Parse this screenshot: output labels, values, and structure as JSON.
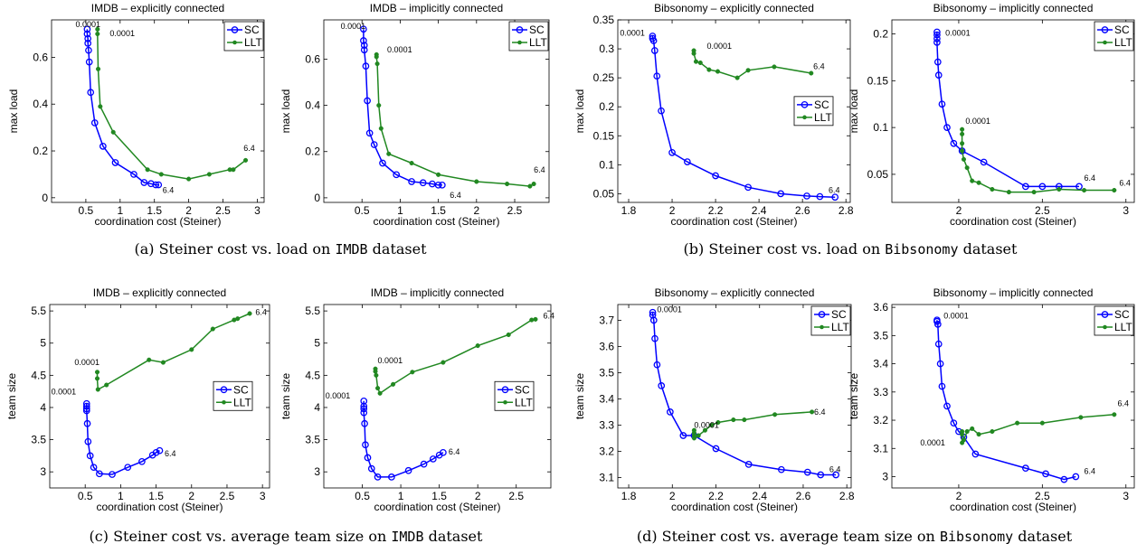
{
  "colors": {
    "SC": "#0000ff",
    "LLT": "#218821"
  },
  "captions": [
    {
      "prefix": "(a) Steiner cost vs. load on ",
      "dataset": "IMDB",
      "suffix": " dataset"
    },
    {
      "prefix": "(b) Steiner cost vs. load on ",
      "dataset": "Bibsonomy",
      "suffix": " dataset"
    },
    {
      "prefix": "(c) Steiner cost vs. average team size on ",
      "dataset": "IMDB",
      "suffix": " dataset"
    },
    {
      "prefix": "(d) Steiner cost vs. average team size on ",
      "dataset": "Bibsonomy",
      "suffix": " dataset"
    }
  ],
  "chart_data": [
    {
      "type": "line",
      "title": "IMDB – explicitly connected",
      "xlabel": "coordination cost (Steiner)",
      "ylabel": "max load",
      "xlim": [
        0,
        3.1
      ],
      "ylim": [
        -0.02,
        0.76
      ],
      "xticks": [
        0.5,
        1,
        1.5,
        2,
        2.5,
        3
      ],
      "xtick_labels": [
        "0.5",
        "1",
        "1.5",
        "2",
        "2.5",
        "3"
      ],
      "yticks": [
        0,
        0.2,
        0.4,
        0.6
      ],
      "ytick_labels": [
        "0",
        "0.2",
        "0.4",
        "0.6"
      ],
      "legend": "top-right",
      "series": [
        {
          "name": "SC",
          "marker": "circle",
          "x": [
            0.52,
            0.52,
            0.53,
            0.53,
            0.54,
            0.55,
            0.57,
            0.63,
            0.75,
            0.93,
            1.2,
            1.35,
            1.45,
            1.52,
            1.56
          ],
          "y": [
            0.72,
            0.7,
            0.68,
            0.66,
            0.63,
            0.58,
            0.45,
            0.32,
            0.22,
            0.15,
            0.1,
            0.065,
            0.06,
            0.055,
            0.055
          ]
        },
        {
          "name": "LLT",
          "marker": "dot",
          "x": [
            0.67,
            0.67,
            0.68,
            0.71,
            0.9,
            1.4,
            1.6,
            2.0,
            2.3,
            2.6,
            2.65,
            2.83
          ],
          "y": [
            0.72,
            0.7,
            0.55,
            0.39,
            0.28,
            0.12,
            0.1,
            0.08,
            0.1,
            0.12,
            0.12,
            0.16
          ]
        }
      ],
      "annotations": [
        {
          "text": "0.0001",
          "x": 0.35,
          "y": 0.73
        },
        {
          "text": "0.0001",
          "x": 0.85,
          "y": 0.69
        },
        {
          "text": "6.4",
          "x": 2.8,
          "y": 0.2
        },
        {
          "text": "6.4",
          "x": 1.62,
          "y": 0.02
        }
      ]
    },
    {
      "type": "line",
      "title": "IMDB – implicitly connected",
      "xlabel": "coordination cost (Steiner)",
      "ylabel": "max load",
      "xlim": [
        0,
        2.95
      ],
      "ylim": [
        -0.02,
        0.77
      ],
      "xticks": [
        0.5,
        1,
        1.5,
        2,
        2.5
      ],
      "xtick_labels": [
        "0.5",
        "1",
        "1.5",
        "2",
        "2.5"
      ],
      "yticks": [
        0,
        0.2,
        0.4,
        0.6
      ],
      "ytick_labels": [
        "0",
        "0.2",
        "0.4",
        "0.6"
      ],
      "legend": "top-right",
      "series": [
        {
          "name": "SC",
          "marker": "circle",
          "x": [
            0.52,
            0.52,
            0.53,
            0.53,
            0.55,
            0.57,
            0.6,
            0.66,
            0.77,
            0.95,
            1.15,
            1.3,
            1.42,
            1.5,
            1.55
          ],
          "y": [
            0.73,
            0.68,
            0.66,
            0.64,
            0.57,
            0.42,
            0.28,
            0.23,
            0.15,
            0.1,
            0.07,
            0.065,
            0.06,
            0.055,
            0.055
          ]
        },
        {
          "name": "LLT",
          "marker": "dot",
          "x": [
            0.69,
            0.69,
            0.7,
            0.72,
            0.75,
            0.85,
            1.15,
            1.5,
            2.0,
            2.4,
            2.7,
            2.75
          ],
          "y": [
            0.62,
            0.61,
            0.58,
            0.4,
            0.3,
            0.19,
            0.15,
            0.1,
            0.07,
            0.06,
            0.05,
            0.06
          ]
        }
      ],
      "annotations": [
        {
          "text": "0.0001",
          "x": 0.22,
          "y": 0.73
        },
        {
          "text": "0.0001",
          "x": 0.83,
          "y": 0.63
        },
        {
          "text": "6.4",
          "x": 2.75,
          "y": 0.11
        },
        {
          "text": "6.4",
          "x": 1.65,
          "y": 0.0
        }
      ]
    },
    {
      "type": "line",
      "title": "Bibsonomy – explicitly connected",
      "xlabel": "coordination cost (Steiner)",
      "ylabel": "max load",
      "xlim": [
        1.75,
        2.82
      ],
      "ylim": [
        0.035,
        0.35
      ],
      "xticks": [
        1.8,
        2,
        2.2,
        2.4,
        2.6,
        2.8
      ],
      "xtick_labels": [
        "1.8",
        "2",
        "2.2",
        "2.4",
        "2.6",
        "2.8"
      ],
      "yticks": [
        0.05,
        0.1,
        0.15,
        0.2,
        0.25,
        0.3,
        0.35
      ],
      "ytick_labels": [
        "0.05",
        "0.1",
        "0.15",
        "0.2",
        "0.25",
        "0.3",
        "0.35"
      ],
      "legend": "middle-right",
      "series": [
        {
          "name": "SC",
          "marker": "circle",
          "x": [
            1.91,
            1.91,
            1.915,
            1.92,
            1.93,
            1.95,
            2.0,
            2.07,
            2.2,
            2.35,
            2.5,
            2.62,
            2.68,
            2.75
          ],
          "y": [
            0.322,
            0.318,
            0.314,
            0.297,
            0.253,
            0.193,
            0.121,
            0.105,
            0.081,
            0.061,
            0.05,
            0.046,
            0.045,
            0.044
          ]
        },
        {
          "name": "LLT",
          "marker": "dot",
          "x": [
            2.1,
            2.1,
            2.11,
            2.13,
            2.17,
            2.21,
            2.3,
            2.35,
            2.47,
            2.64
          ],
          "y": [
            0.297,
            0.292,
            0.278,
            0.276,
            0.264,
            0.261,
            0.25,
            0.263,
            0.269,
            0.258
          ]
        }
      ],
      "annotations": [
        {
          "text": "0.0001",
          "x": 1.76,
          "y": 0.323
        },
        {
          "text": "0.0001",
          "x": 2.16,
          "y": 0.3
        },
        {
          "text": "6.4",
          "x": 2.65,
          "y": 0.265
        },
        {
          "text": "6.4",
          "x": 2.72,
          "y": 0.051
        }
      ]
    },
    {
      "type": "line",
      "title": "Bibsonomy – implicitly connected",
      "xlabel": "coordination cost (Steiner)",
      "ylabel": "max load",
      "xlim": [
        1.6,
        3.05
      ],
      "ylim": [
        0.02,
        0.215
      ],
      "xticks": [
        2,
        2.5,
        3
      ],
      "xtick_labels": [
        "2",
        "2.5",
        "3"
      ],
      "yticks": [
        0.05,
        0.1,
        0.15,
        0.2
      ],
      "ytick_labels": [
        "0.05",
        "0.1",
        "0.15",
        "0.2"
      ],
      "legend": "top-right",
      "series": [
        {
          "name": "SC",
          "marker": "circle",
          "x": [
            1.87,
            1.87,
            1.87,
            1.87,
            1.875,
            1.88,
            1.9,
            1.93,
            1.97,
            2.02,
            2.15,
            2.4,
            2.5,
            2.6,
            2.72
          ],
          "y": [
            0.202,
            0.199,
            0.195,
            0.191,
            0.17,
            0.156,
            0.125,
            0.1,
            0.083,
            0.075,
            0.063,
            0.037,
            0.037,
            0.037,
            0.037
          ]
        },
        {
          "name": "LLT",
          "marker": "dot",
          "x": [
            2.02,
            2.02,
            2.02,
            2.02,
            2.03,
            2.05,
            2.08,
            2.12,
            2.2,
            2.3,
            2.45,
            2.6,
            2.75,
            2.93
          ],
          "y": [
            0.098,
            0.093,
            0.083,
            0.075,
            0.066,
            0.057,
            0.043,
            0.041,
            0.034,
            0.031,
            0.031,
            0.034,
            0.033,
            0.033
          ]
        }
      ],
      "annotations": [
        {
          "text": "0.0001",
          "x": 1.92,
          "y": 0.198
        },
        {
          "text": "0.0001",
          "x": 2.04,
          "y": 0.104
        },
        {
          "text": "6.4",
          "x": 2.75,
          "y": 0.043
        },
        {
          "text": "6.4",
          "x": 2.96,
          "y": 0.038
        }
      ]
    },
    {
      "type": "line",
      "title": "IMDB – explicitly connected",
      "xlabel": "coordination cost (Steiner)",
      "ylabel": "team size",
      "xlim": [
        0,
        3.1
      ],
      "ylim": [
        2.75,
        5.6
      ],
      "xticks": [
        0.5,
        1,
        1.5,
        2,
        2.5,
        3
      ],
      "xtick_labels": [
        "0.5",
        "1",
        "1.5",
        "2",
        "2.5",
        "3"
      ],
      "yticks": [
        3,
        3.5,
        4,
        4.5,
        5,
        5.5
      ],
      "ytick_labels": [
        "3",
        "3.5",
        "4",
        "4.5",
        "5",
        "5.5"
      ],
      "legend": "middle-right",
      "series": [
        {
          "name": "SC",
          "marker": "circle",
          "x": [
            0.52,
            0.52,
            0.52,
            0.52,
            0.53,
            0.54,
            0.57,
            0.62,
            0.7,
            0.88,
            1.1,
            1.3,
            1.45,
            1.5,
            1.55
          ],
          "y": [
            4.06,
            4.02,
            3.98,
            3.95,
            3.75,
            3.47,
            3.25,
            3.07,
            2.97,
            2.96,
            3.07,
            3.16,
            3.26,
            3.3,
            3.33
          ]
        },
        {
          "name": "LLT",
          "marker": "dot",
          "x": [
            0.67,
            0.67,
            0.68,
            0.8,
            1.4,
            1.6,
            2.0,
            2.3,
            2.6,
            2.65,
            2.82
          ],
          "y": [
            4.55,
            4.45,
            4.28,
            4.35,
            4.74,
            4.7,
            4.9,
            5.22,
            5.36,
            5.38,
            5.46
          ]
        }
      ],
      "annotations": [
        {
          "text": "0.0001",
          "x": 0.35,
          "y": 4.66
        },
        {
          "text": "0.0001",
          "x": 0.02,
          "y": 4.2
        },
        {
          "text": "6.4",
          "x": 2.9,
          "y": 5.44
        },
        {
          "text": "6.4",
          "x": 1.62,
          "y": 3.24
        }
      ]
    },
    {
      "type": "line",
      "title": "IMDB – implicitly connected",
      "xlabel": "coordination cost (Steiner)",
      "ylabel": "team size",
      "xlim": [
        0,
        2.95
      ],
      "ylim": [
        2.75,
        5.6
      ],
      "xticks": [
        0.5,
        1,
        1.5,
        2,
        2.5
      ],
      "xtick_labels": [
        "0.5",
        "1",
        "1.5",
        "2",
        "2.5"
      ],
      "yticks": [
        3,
        3.5,
        4,
        4.5,
        5,
        5.5
      ],
      "ytick_labels": [
        "3",
        "3.5",
        "4",
        "4.5",
        "5",
        "5.5"
      ],
      "legend": "middle-right",
      "series": [
        {
          "name": "SC",
          "marker": "circle",
          "x": [
            0.52,
            0.52,
            0.52,
            0.52,
            0.53,
            0.54,
            0.57,
            0.62,
            0.7,
            0.88,
            1.1,
            1.3,
            1.42,
            1.5,
            1.55
          ],
          "y": [
            4.1,
            4.02,
            3.98,
            3.92,
            3.75,
            3.42,
            3.22,
            3.05,
            2.92,
            2.92,
            3.02,
            3.12,
            3.2,
            3.26,
            3.3
          ]
        },
        {
          "name": "LLT",
          "marker": "dot",
          "x": [
            0.67,
            0.67,
            0.68,
            0.7,
            0.73,
            0.9,
            1.15,
            1.55,
            2.0,
            2.4,
            2.7,
            2.75
          ],
          "y": [
            4.6,
            4.56,
            4.5,
            4.3,
            4.22,
            4.36,
            4.55,
            4.7,
            4.96,
            5.13,
            5.36,
            5.37
          ]
        }
      ],
      "annotations": [
        {
          "text": "0.0001",
          "x": 0.7,
          "y": 4.69
        },
        {
          "text": "0.0001",
          "x": 0.02,
          "y": 4.14
        },
        {
          "text": "6.4",
          "x": 2.85,
          "y": 5.38
        },
        {
          "text": "6.4",
          "x": 1.62,
          "y": 3.27
        }
      ]
    },
    {
      "type": "line",
      "title": "Bibsonomy – explicitly connected",
      "xlabel": "coordination cost (Steiner)",
      "ylabel": "team size",
      "xlim": [
        1.75,
        2.82
      ],
      "ylim": [
        3.06,
        3.76
      ],
      "xticks": [
        1.8,
        2,
        2.2,
        2.4,
        2.6,
        2.8
      ],
      "xtick_labels": [
        "1.8",
        "2",
        "2.2",
        "2.4",
        "2.6",
        "2.8"
      ],
      "yticks": [
        3.1,
        3.2,
        3.3,
        3.4,
        3.5,
        3.6,
        3.7
      ],
      "ytick_labels": [
        "3.1",
        "3.2",
        "3.3",
        "3.4",
        "3.5",
        "3.6",
        "3.7"
      ],
      "legend": "top-right",
      "series": [
        {
          "name": "SC",
          "marker": "circle",
          "x": [
            1.91,
            1.91,
            1.915,
            1.92,
            1.93,
            1.95,
            1.99,
            2.05,
            2.1,
            2.2,
            2.35,
            2.5,
            2.62,
            2.68,
            2.75
          ],
          "y": [
            3.73,
            3.72,
            3.7,
            3.63,
            3.53,
            3.45,
            3.35,
            3.26,
            3.26,
            3.21,
            3.15,
            3.13,
            3.12,
            3.11,
            3.11
          ]
        },
        {
          "name": "LLT",
          "marker": "dot",
          "x": [
            2.1,
            2.1,
            2.1,
            2.1,
            2.12,
            2.15,
            2.18,
            2.21,
            2.28,
            2.33,
            2.47,
            2.64
          ],
          "y": [
            3.28,
            3.27,
            3.26,
            3.25,
            3.26,
            3.28,
            3.3,
            3.31,
            3.32,
            3.32,
            3.34,
            3.35
          ]
        }
      ],
      "annotations": [
        {
          "text": "0.0001",
          "x": 1.93,
          "y": 3.73
        },
        {
          "text": "0.0001",
          "x": 2.1,
          "y": 3.29
        },
        {
          "text": "6.4",
          "x": 2.65,
          "y": 3.34
        },
        {
          "text": "6.4",
          "x": 2.72,
          "y": 3.12
        }
      ]
    },
    {
      "type": "line",
      "title": "Bibsonomy – implicitly connected",
      "xlabel": "coordination cost (Steiner)",
      "ylabel": "team size",
      "xlim": [
        1.6,
        3.05
      ],
      "ylim": [
        2.96,
        3.61
      ],
      "xticks": [
        2,
        2.5,
        3
      ],
      "xtick_labels": [
        "2",
        "2.5",
        "3"
      ],
      "yticks": [
        3,
        3.1,
        3.2,
        3.3,
        3.4,
        3.5,
        3.6
      ],
      "ytick_labels": [
        "3",
        "3.1",
        "3.2",
        "3.3",
        "3.4",
        "3.5",
        "3.6"
      ],
      "legend": "top-right",
      "series": [
        {
          "name": "SC",
          "marker": "circle",
          "x": [
            1.87,
            1.87,
            1.875,
            1.88,
            1.89,
            1.9,
            1.93,
            1.97,
            2.0,
            2.03,
            2.1,
            2.4,
            2.52,
            2.63,
            2.7
          ],
          "y": [
            3.555,
            3.55,
            3.54,
            3.47,
            3.4,
            3.32,
            3.25,
            3.19,
            3.16,
            3.14,
            3.08,
            3.03,
            3.01,
            2.99,
            3.0
          ]
        },
        {
          "name": "LLT",
          "marker": "dot",
          "x": [
            2.02,
            2.02,
            2.02,
            2.03,
            2.05,
            2.08,
            2.12,
            2.2,
            2.35,
            2.5,
            2.73,
            2.93
          ],
          "y": [
            3.16,
            3.15,
            3.12,
            3.13,
            3.16,
            3.17,
            3.15,
            3.16,
            3.19,
            3.19,
            3.21,
            3.22
          ]
        }
      ],
      "annotations": [
        {
          "text": "0.0001",
          "x": 1.91,
          "y": 3.56
        },
        {
          "text": "0.0001",
          "x": 1.77,
          "y": 3.11
        },
        {
          "text": "6.4",
          "x": 2.95,
          "y": 3.25
        },
        {
          "text": "6.4",
          "x": 2.75,
          "y": 3.01
        }
      ]
    }
  ]
}
